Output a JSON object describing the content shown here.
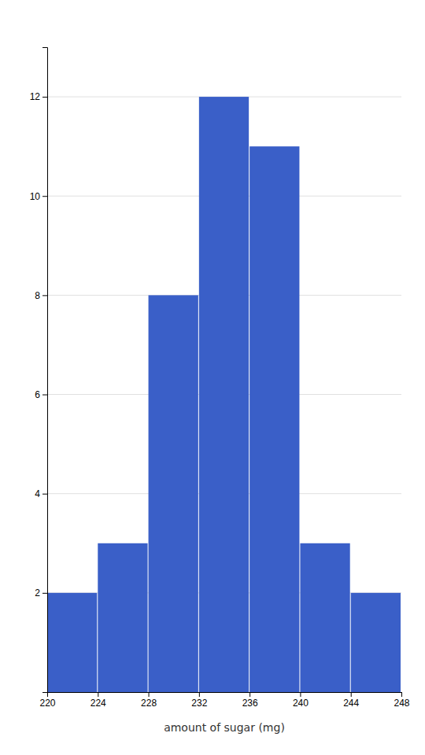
{
  "chart_data": {
    "type": "histogram",
    "xlabel": "amount of sugar (mg)",
    "bins": [
      220,
      224,
      228,
      232,
      236,
      240,
      244,
      248
    ],
    "values": [
      2,
      3,
      8,
      12,
      11,
      3,
      2
    ],
    "color": "#3a5fc8",
    "xlim": [
      220,
      248
    ],
    "xticks": [
      220,
      224,
      228,
      232,
      236,
      240,
      244,
      248
    ],
    "ylim": [
      0,
      13
    ],
    "yticks": [
      2,
      4,
      6,
      8,
      10,
      12
    ],
    "grid": true
  }
}
